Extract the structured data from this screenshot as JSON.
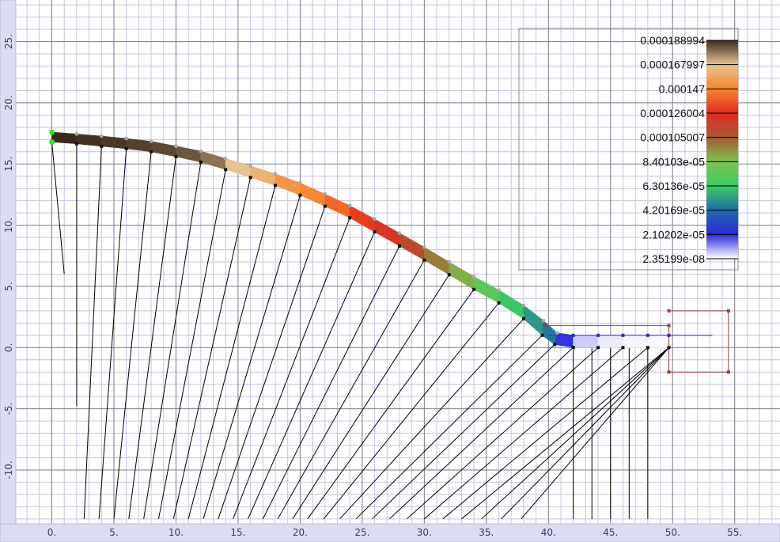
{
  "viewport": {
    "x_range": [
      -2.9,
      58.65
    ],
    "y_range": [
      -14.4,
      28.4
    ],
    "x_ticks": [
      0,
      5,
      10,
      15,
      20,
      25,
      30,
      35,
      40,
      45,
      50,
      55
    ],
    "y_ticks": [
      -10,
      -5,
      0,
      5,
      10,
      15,
      20,
      25
    ],
    "x_tick_labels": [
      "0.",
      "5.",
      "10.",
      "15.",
      "20.",
      "25.",
      "30.",
      "35.",
      "40.",
      "45.",
      "50.",
      "55."
    ],
    "y_tick_labels": [
      "-10.",
      "-5.",
      "0.",
      "5.",
      "10.",
      "15.",
      "20.",
      "25."
    ],
    "major_grid": 5,
    "minor_grid": 1
  },
  "colors": {
    "background": "#ffffff",
    "minor_grid": "#c4c4e6",
    "major_grid": "#7a7a86",
    "ruler_bg": "#dcdcf4",
    "ruler_text": "#3a3a6a",
    "mesh_line": "#000000",
    "node_inner": "#111111",
    "node_outer": "#a8a8a8",
    "left_bc_node": "#22ee22",
    "flat_node": "#2a2ad8",
    "support_box": "#9a3a3a",
    "legend_border": "#888888"
  },
  "legend": {
    "labels": [
      "0.000188994",
      "0.000167997",
      "0.000147",
      "0.000126004",
      "0.000105007",
      "8.40103e-05",
      "6.30136e-05",
      "4.20169e-05",
      "2.10202e-05",
      "2.35199e-08"
    ],
    "stops": [
      "#3a2a1e",
      "#e7c392",
      "#f7862e",
      "#e32b1f",
      "#a55a34",
      "#7cc24e",
      "#3ecc64",
      "#1e6aa8",
      "#2a2adc",
      "#ffffff"
    ]
  },
  "model": {
    "curve_inner": [
      [
        0,
        16.8
      ],
      [
        2,
        16.65
      ],
      [
        4,
        16.45
      ],
      [
        6,
        16.25
      ],
      [
        8,
        16
      ],
      [
        10,
        15.6
      ],
      [
        12,
        15.15
      ],
      [
        14,
        14.55
      ],
      [
        16,
        13.9
      ],
      [
        18,
        13.25
      ],
      [
        20,
        12.45
      ],
      [
        22,
        11.55
      ],
      [
        24,
        10.6
      ],
      [
        26,
        9.45
      ],
      [
        28,
        8.3
      ],
      [
        30,
        7.15
      ],
      [
        32,
        5.95
      ],
      [
        34,
        4.75
      ],
      [
        36,
        3.65
      ],
      [
        38,
        2.35
      ],
      [
        39.5,
        1
      ],
      [
        40.5,
        0.25
      ],
      [
        42,
        0.02
      ],
      [
        44,
        0
      ],
      [
        46,
        0
      ],
      [
        48,
        0
      ],
      [
        49.7,
        0
      ]
    ],
    "curve_outer": [
      [
        0,
        17.6
      ],
      [
        2,
        17.45
      ],
      [
        4,
        17.28
      ],
      [
        6,
        17.08
      ],
      [
        8,
        16.85
      ],
      [
        10,
        16.45
      ],
      [
        12,
        16.05
      ],
      [
        14,
        15.45
      ],
      [
        16,
        14.85
      ],
      [
        18,
        14.2
      ],
      [
        20,
        13.45
      ],
      [
        22,
        12.55
      ],
      [
        24,
        11.6
      ],
      [
        26,
        10.5
      ],
      [
        28,
        9.35
      ],
      [
        30,
        8.2
      ],
      [
        32,
        7
      ],
      [
        34,
        5.8
      ],
      [
        36,
        4.7
      ],
      [
        38,
        3.45
      ],
      [
        39.6,
        2.2
      ],
      [
        40.7,
        1.2
      ],
      [
        42,
        1
      ],
      [
        44,
        1
      ],
      [
        46,
        1
      ],
      [
        48,
        1
      ],
      [
        49.7,
        1
      ]
    ],
    "values": [
      0.000189,
      0.000188,
      0.000187,
      0.000186,
      0.000185,
      0.000183,
      0.000179,
      0.000168,
      0.000162,
      0.000152,
      0.000148,
      0.00014,
      0.00013,
      0.000122,
      0.000112,
      9.8e-05,
      8.8e-05,
      7.4e-05,
      6.2e-05,
      5.2e-05,
      4.5e-05,
      2e-05,
      5e-06,
      2e-06,
      1e-06,
      5e-07,
      2e-07
    ],
    "ray_ends": [
      [
        1,
        6
      ],
      [
        2,
        -4.8
      ],
      [
        2.6,
        -14
      ],
      [
        3.8,
        -14
      ],
      [
        5,
        -14
      ],
      [
        6.2,
        -14
      ],
      [
        7.4,
        -14
      ],
      [
        8.6,
        -14
      ],
      [
        9.8,
        -14
      ],
      [
        11,
        -14
      ],
      [
        12.2,
        -14
      ],
      [
        13.4,
        -14
      ],
      [
        14.6,
        -14
      ],
      [
        15.8,
        -14
      ],
      [
        17,
        -14
      ],
      [
        18.2,
        -14
      ],
      [
        19.4,
        -14
      ],
      [
        20.6,
        -14
      ],
      [
        21.9,
        -14
      ],
      [
        23.2,
        -14
      ],
      [
        24.5,
        -14
      ],
      [
        25.8,
        -14
      ],
      [
        27.2,
        -14
      ],
      [
        28.6,
        -14
      ],
      [
        30,
        -14
      ],
      [
        31.5,
        -14
      ],
      [
        33,
        -14
      ],
      [
        34.6,
        -14
      ],
      [
        36.2,
        -14
      ],
      [
        37.8,
        -14
      ]
    ],
    "flat_rays_x": [
      42,
      43.5,
      45,
      46.5,
      48
    ],
    "flat_rays_bottom": -14,
    "extension_line": [
      [
        40,
        1
      ],
      [
        53.2,
        1
      ]
    ],
    "support_box": [
      [
        39.7,
        1.8
      ],
      [
        49.7,
        1.8
      ],
      [
        49.7,
        -2
      ],
      [
        54.5,
        -2
      ],
      [
        54.5,
        3
      ],
      [
        49.7,
        3
      ]
    ]
  }
}
